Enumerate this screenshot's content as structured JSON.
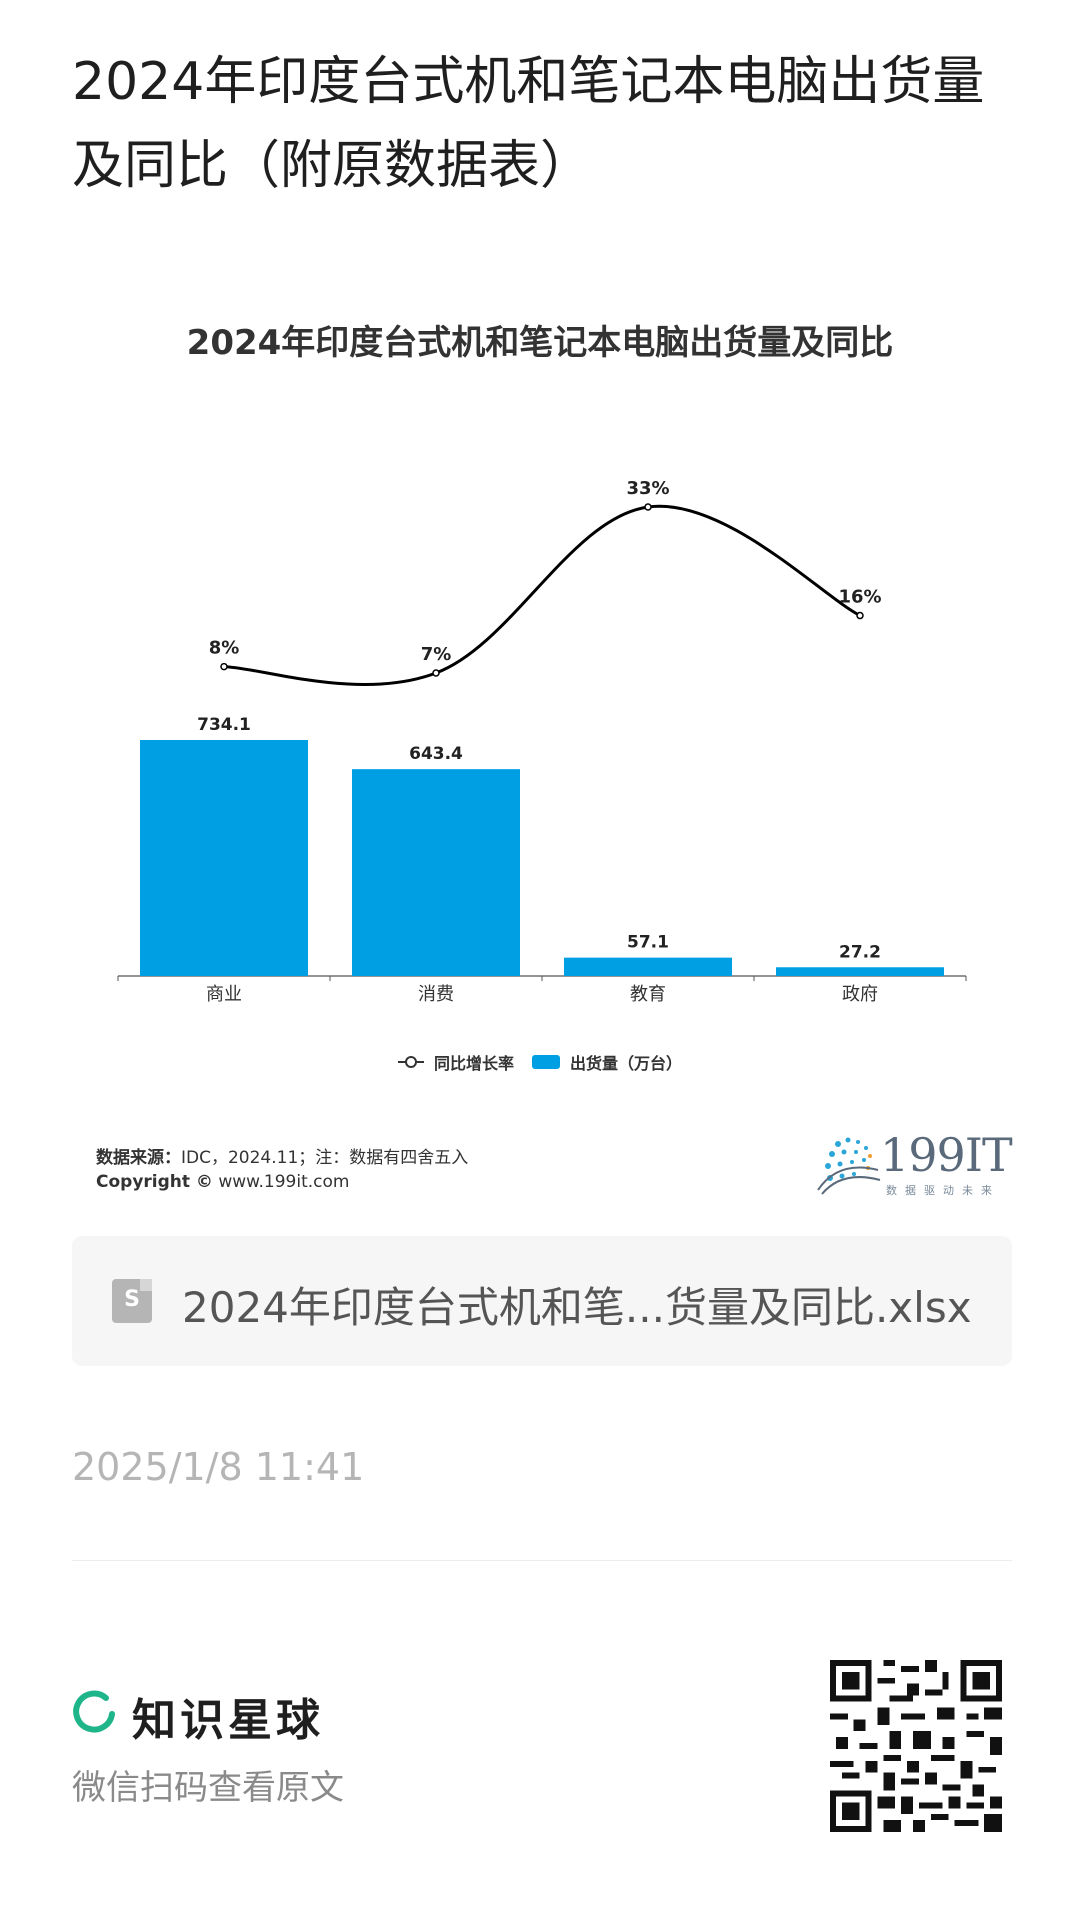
{
  "page": {
    "title": "2024年印度台式机和笔记本电脑出货量及同比（附原数据表）"
  },
  "chart_data": {
    "type": "bar",
    "title": "2024年印度台式机和笔记本电脑出货量及同比",
    "categories": [
      "商业",
      "消费",
      "教育",
      "政府"
    ],
    "series": [
      {
        "name": "出货量（万台）",
        "type": "bar",
        "values": [
          734.1,
          643.4,
          57.1,
          27.2
        ],
        "labels": [
          "734.1",
          "643.4",
          "57.1",
          "27.2"
        ],
        "color": "#009fe3"
      },
      {
        "name": "同比增长率",
        "type": "line",
        "values": [
          8,
          7,
          33,
          16
        ],
        "labels": [
          "8%",
          "7%",
          "33%",
          "16%"
        ],
        "color": "#000000"
      }
    ],
    "legend": {
      "position": "bottom",
      "line_label": "同比增长率",
      "bar_label": "出货量（万台）"
    },
    "grid": false
  },
  "source": {
    "label": "数据来源：",
    "text": "IDC，2024.11；注：数据有四舍五入",
    "copyright_label": "Copyright ©",
    "copyright_url": "www.199it.com"
  },
  "brand": {
    "name": "199IT",
    "tagline": "数据驱动未来"
  },
  "file": {
    "name": "2024年印度台式机和笔...货量及同比.xlsx",
    "icon": "spreadsheet-icon",
    "icon_letter": "S"
  },
  "timestamp": "2025/1/8 11:41",
  "footer": {
    "app_name": "知识星球",
    "app_icon": "planet-logo-icon",
    "scan_text": "微信扫码查看原文",
    "qr_icon": "qr-code"
  }
}
